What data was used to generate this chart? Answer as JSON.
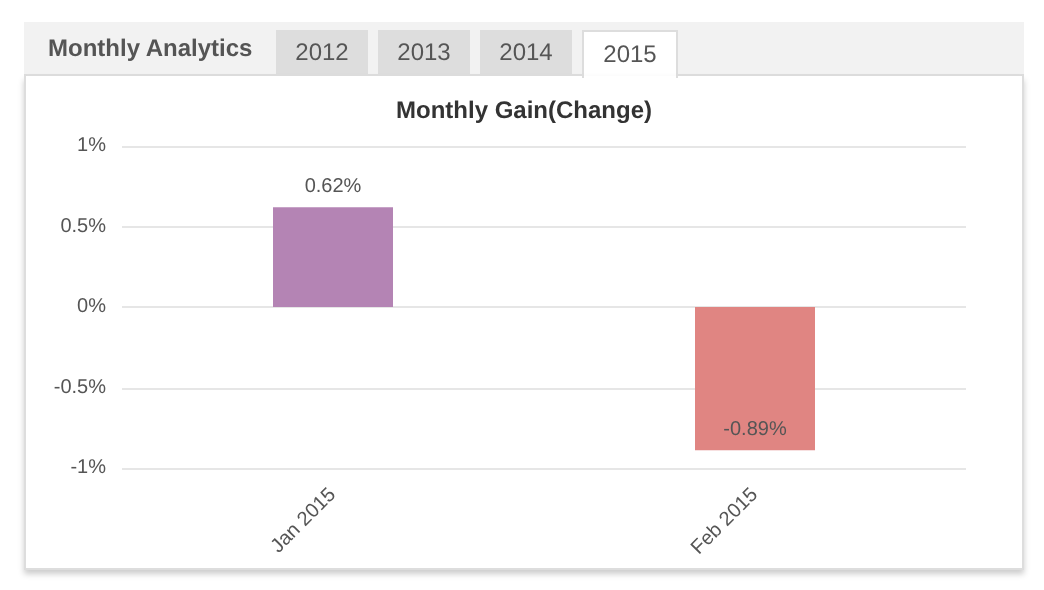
{
  "chart_data": {
    "type": "bar",
    "title": "Monthly Gain(Change)",
    "annotations": [
      "Monthly Analytics",
      "2012",
      "2013",
      "2014",
      "2015"
    ],
    "categories": [
      "Jan 2015",
      "Feb 2015"
    ],
    "values": [
      0.62,
      -0.89
    ],
    "colors": [
      "#b484b4",
      "#e08582"
    ],
    "value_labels": [
      "0.62%",
      "-0.89%"
    ],
    "ylim": [
      -1,
      1
    ],
    "yticks": [
      {
        "value": -1,
        "label": "-1%"
      },
      {
        "value": -0.5,
        "label": "-0.5%"
      },
      {
        "value": 0,
        "label": "0%"
      },
      {
        "value": 0.5,
        "label": "0.5%"
      },
      {
        "value": 1,
        "label": "1%"
      }
    ],
    "grid": "y"
  }
}
